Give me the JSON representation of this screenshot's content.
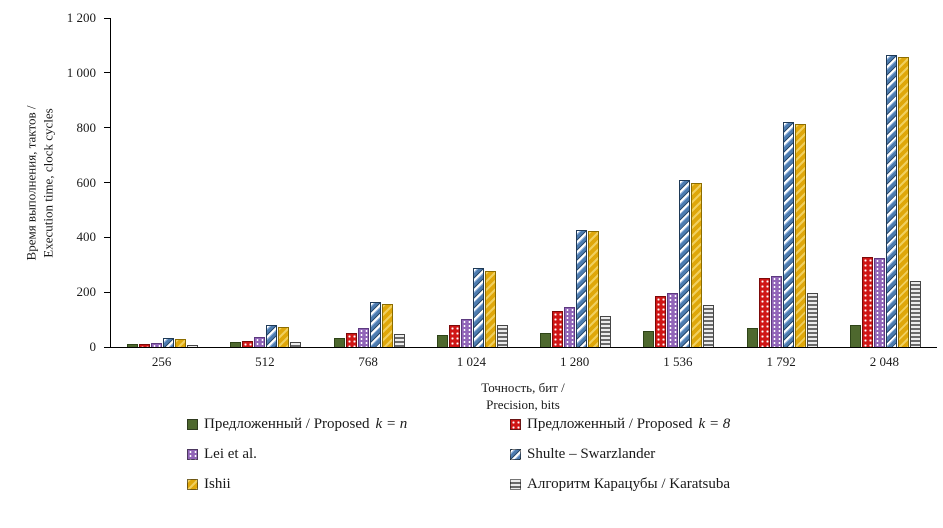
{
  "chart_data": {
    "type": "bar",
    "categories": [
      "256",
      "512",
      "768",
      "1 024",
      "1 280",
      "1 536",
      "1 792",
      "2 048"
    ],
    "series": [
      {
        "name": "Предложенный / Proposed ",
        "math": "k = n",
        "color": "#4e682e",
        "pattern": "solid",
        "values": [
          10,
          20,
          32,
          45,
          52,
          60,
          70,
          82
        ]
      },
      {
        "name": "Предложенный / Proposed ",
        "math": "k = 8",
        "color": "#d01515",
        "pattern": "white-dots",
        "values": [
          10,
          23,
          50,
          82,
          130,
          185,
          252,
          330
        ]
      },
      {
        "name": "Lei et al.",
        "math": "",
        "color": "#9165b8",
        "pattern": "white-dots",
        "values": [
          16,
          38,
          68,
          102,
          146,
          198,
          260,
          324
        ]
      },
      {
        "name": "Shulte – Swarzlander",
        "math": "",
        "color": "#4d7cb0",
        "pattern": "diagonal-stripes",
        "values": [
          33,
          82,
          165,
          287,
          428,
          608,
          820,
          1065
        ]
      },
      {
        "name": "Ishii",
        "math": "",
        "color": "#dfa70a",
        "pattern": "diagonal-stripes",
        "values": [
          28,
          73,
          158,
          278,
          422,
          600,
          812,
          1058
        ]
      },
      {
        "name": "Алгоритм Карацубы / Karatsuba",
        "math": "",
        "color": "#6a6a6a",
        "pattern": "horizontal-stripes",
        "values": [
          8,
          20,
          48,
          80,
          114,
          154,
          197,
          240
        ]
      }
    ],
    "xlabel_line1": "Точность, бит /",
    "xlabel_line2": "Precision, bits",
    "ylabel_line1": "Время выполнения, тактов /",
    "ylabel_line2": "Execution time, clock cycles",
    "ylim": [
      0,
      1200
    ],
    "ytick_step": 200,
    "yticks": [
      "0",
      "200",
      "400",
      "600",
      "800",
      "1 000",
      "1 200"
    ],
    "grid": false,
    "legend_position": "bottom"
  }
}
